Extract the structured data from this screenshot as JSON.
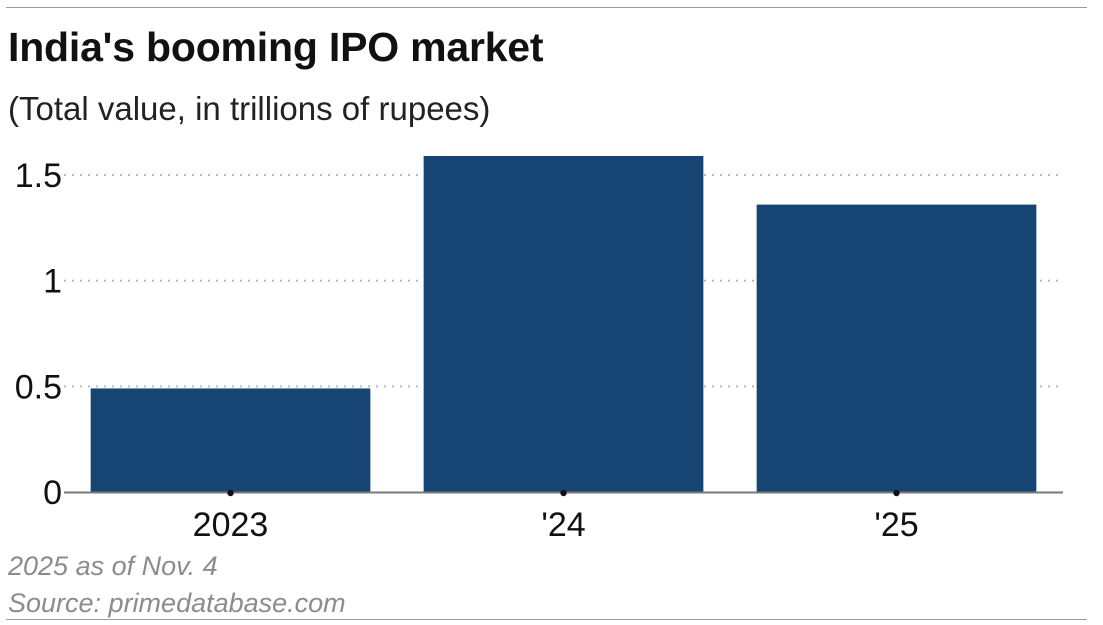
{
  "header": {
    "title": "India's booming IPO market",
    "subtitle": "(Total value, in trillions of rupees)"
  },
  "footer": {
    "note": "2025 as of Nov. 4",
    "source": "Source: primedatabase.com"
  },
  "colors": {
    "bar": "#174573",
    "grid": "#b8b8b8",
    "axis": "#7a7a7a",
    "muted_text": "#8c8c8c"
  },
  "chart_data": {
    "type": "bar",
    "categories": [
      "2023",
      "'24",
      "'25"
    ],
    "values": [
      0.49,
      1.59,
      1.36
    ],
    "title": "India's booming IPO market",
    "subtitle": "(Total value, in trillions of rupees)",
    "ylim": [
      0,
      1.6
    ],
    "yticks": [
      0,
      0.5,
      1,
      1.5
    ],
    "ytick_labels": [
      "0",
      "0.5",
      "1",
      "1.5"
    ],
    "grid": true,
    "grid_style": "dotted",
    "legend": "none"
  }
}
